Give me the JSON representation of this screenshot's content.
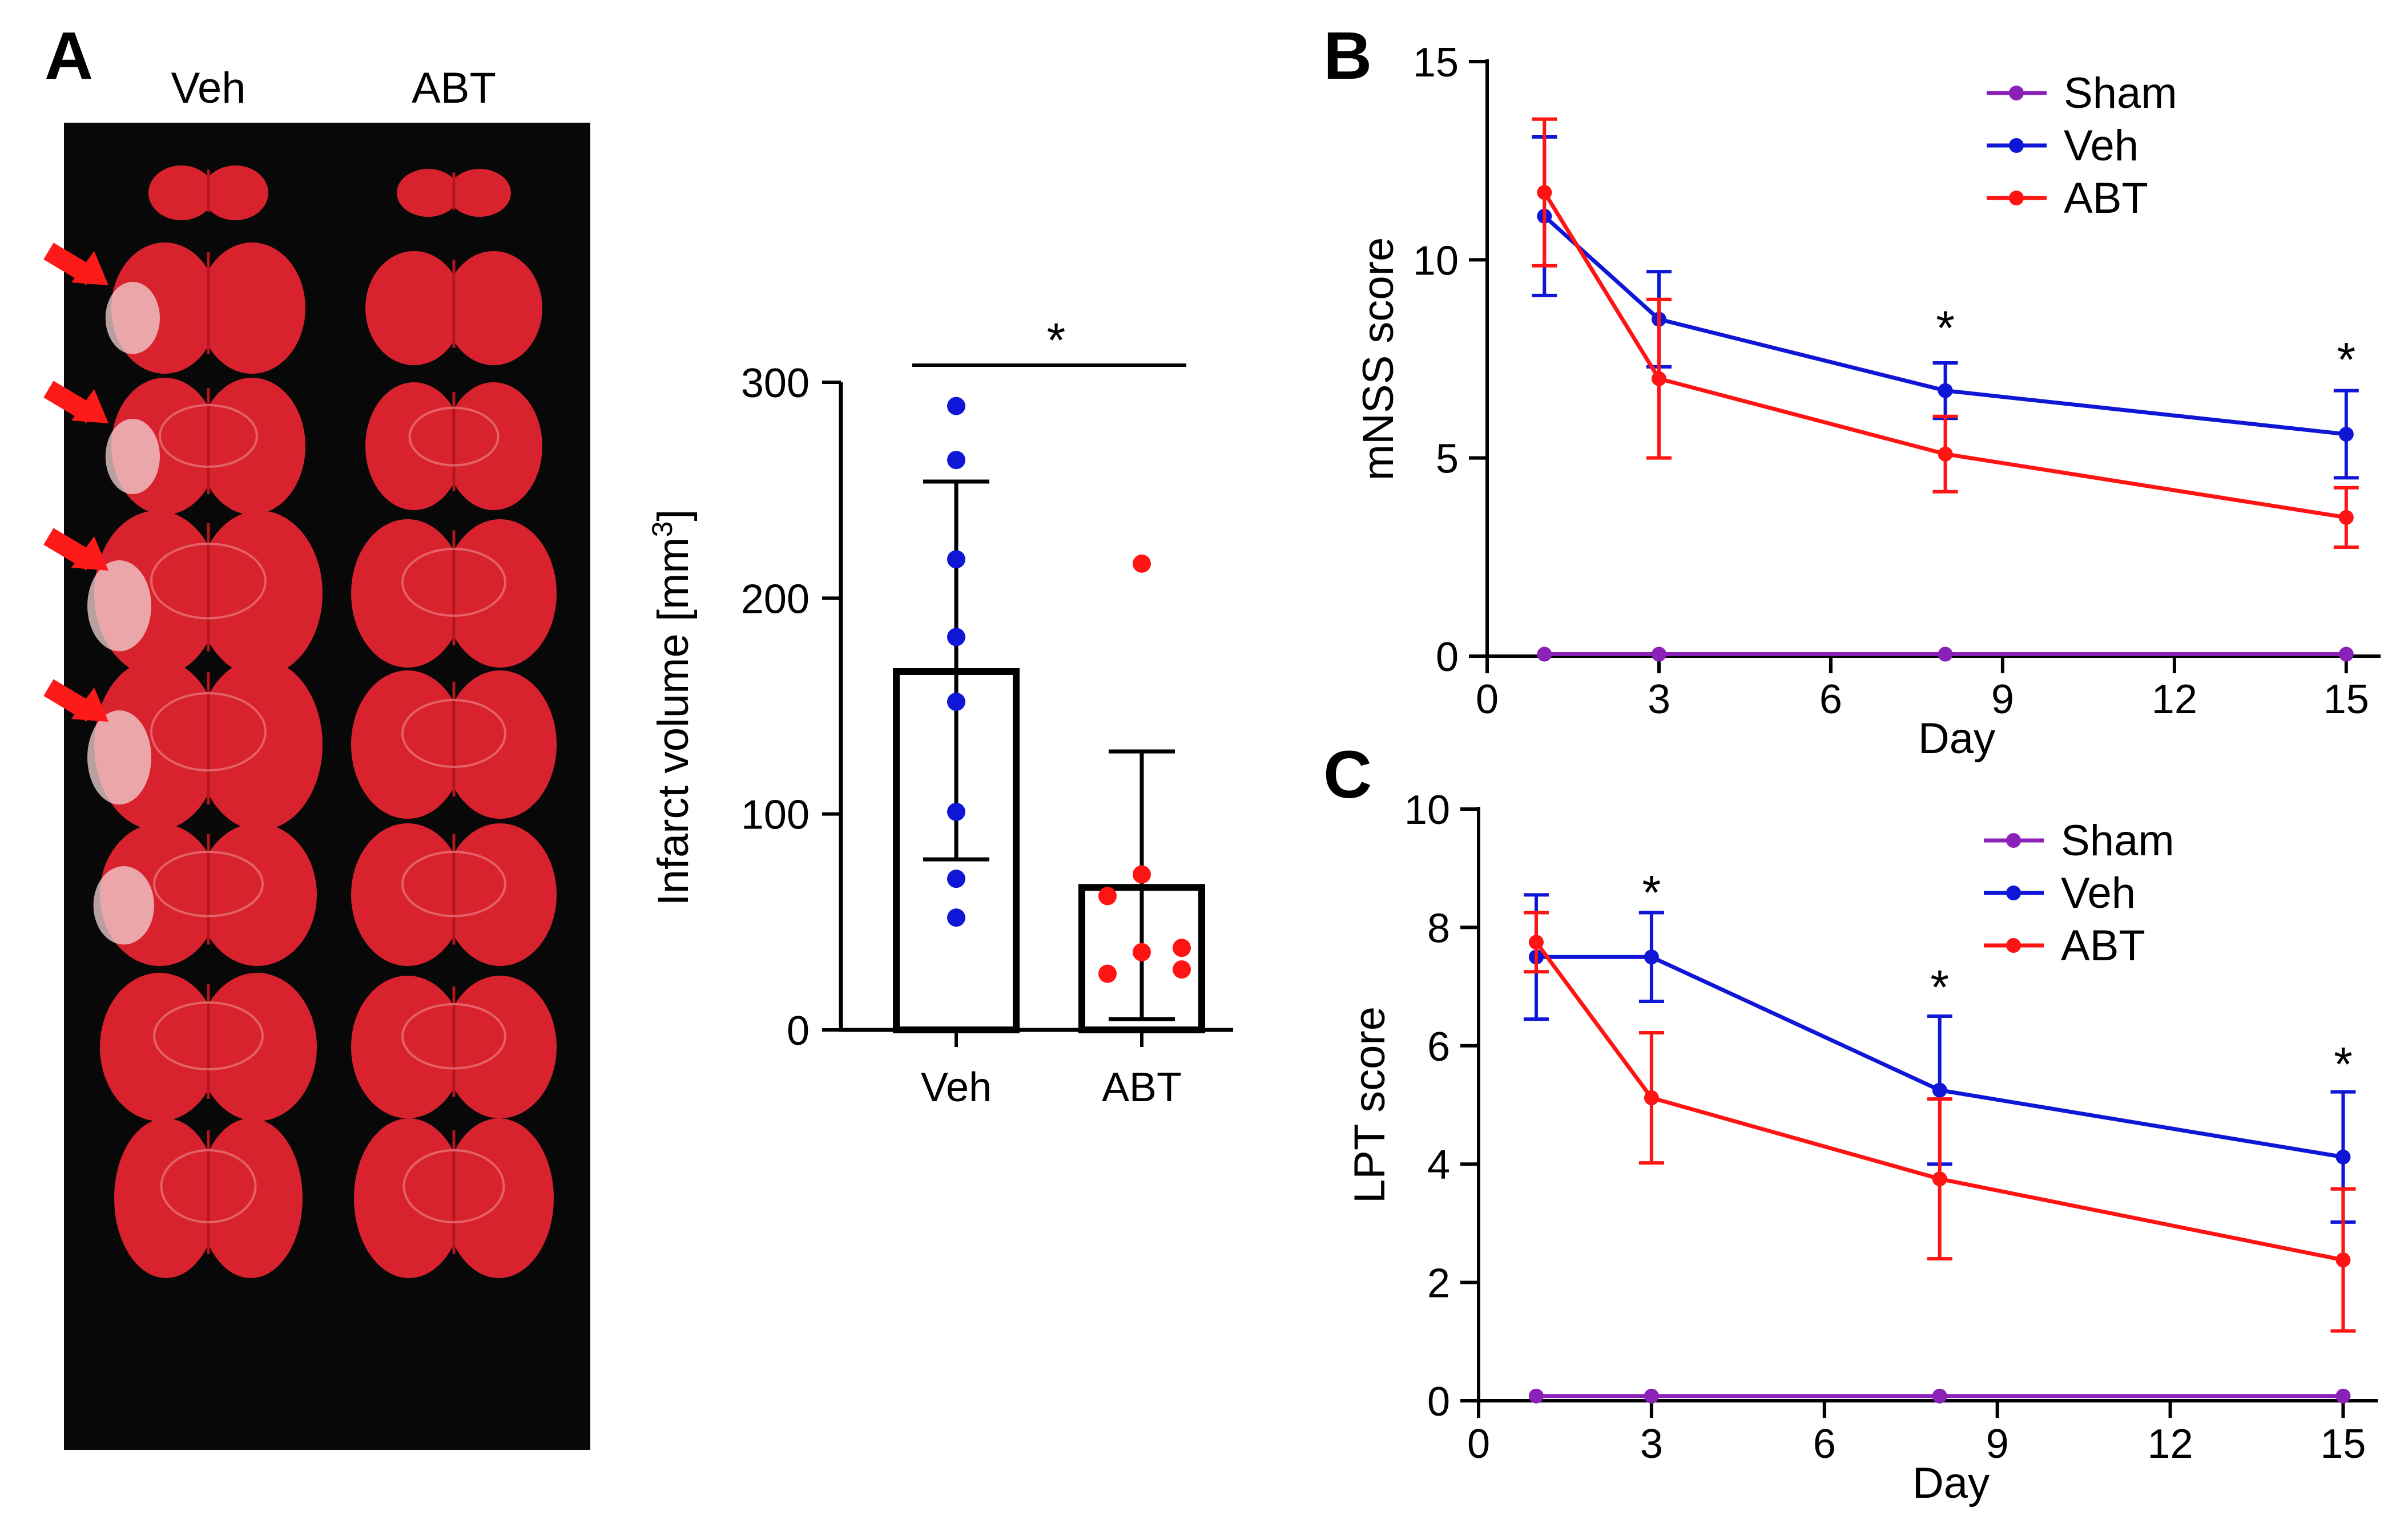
{
  "panel_labels": {
    "a": "A",
    "b": "B",
    "c": "C"
  },
  "photo": {
    "col_headers": [
      "Veh",
      "ABT"
    ],
    "sections": 8,
    "arrow_rows": [
      1,
      2,
      3,
      4
    ],
    "colors": {
      "tissue": "#d8232f",
      "tissue_dark": "#b4161f",
      "background": "#080808",
      "arrow": "#ff1a1a",
      "infarct": "#f2d3d3"
    }
  },
  "colors": {
    "sham": "#8a22b8",
    "veh": "#0f16d6",
    "abt": "#ff1414"
  },
  "chart_data": [
    {
      "id": "infarct",
      "type": "bar",
      "categories": [
        "Veh",
        "ABT"
      ],
      "values": [
        166,
        66
      ],
      "errors": [
        [
          79,
          254
        ],
        [
          5,
          129
        ]
      ],
      "points": [
        [
          289,
          264,
          218,
          182,
          152,
          101,
          70,
          52
        ],
        [
          216,
          72,
          62,
          38,
          36,
          28,
          26
        ]
      ],
      "point_colors": [
        "#0f16d6",
        "#ff1414"
      ],
      "ylabel": "Infarct volume [mm",
      "ylabel_sup": "3",
      "ylabel_end": "]",
      "yticks": [
        0,
        100,
        200,
        300
      ],
      "ylim": [
        0,
        300
      ],
      "significance": "*"
    },
    {
      "id": "mnss",
      "type": "line",
      "xlabel": "Day",
      "ylabel": "mNSS  score",
      "xticks": [
        0,
        3,
        6,
        9,
        12,
        15
      ],
      "yticks": [
        0,
        5,
        10,
        15
      ],
      "xlim": [
        0,
        15.6
      ],
      "ylim": [
        0,
        15
      ],
      "legend": "top-right",
      "series": [
        {
          "name": "Sham",
          "color": "#8a22b8",
          "x": [
            1,
            3,
            8,
            15
          ],
          "y": [
            0.05,
            0.05,
            0.05,
            0.05
          ],
          "err": [
            0,
            0,
            0,
            0
          ]
        },
        {
          "name": "Veh",
          "color": "#0f16d6",
          "x": [
            1,
            3,
            8,
            15
          ],
          "y": [
            11.1,
            8.5,
            6.7,
            5.6
          ],
          "err": [
            2.0,
            1.2,
            0.7,
            1.1
          ]
        },
        {
          "name": "ABT",
          "color": "#ff1414",
          "x": [
            1,
            3,
            8,
            15
          ],
          "y": [
            11.7,
            7.0,
            5.1,
            3.5
          ],
          "err": [
            1.85,
            2.0,
            0.95,
            0.75
          ]
        }
      ],
      "annotations": [
        {
          "x": 8,
          "y": 8.3,
          "text": "*"
        },
        {
          "x": 15,
          "y": 7.5,
          "text": "*"
        }
      ]
    },
    {
      "id": "lpt",
      "type": "line",
      "xlabel": "Day",
      "ylabel": "LPT score",
      "xticks": [
        0,
        3,
        6,
        9,
        12,
        15
      ],
      "yticks": [
        0,
        2,
        4,
        6,
        8,
        10
      ],
      "xlim": [
        0,
        15.6
      ],
      "ylim": [
        0,
        10
      ],
      "legend": "top-right",
      "series": [
        {
          "name": "Sham",
          "color": "#8a22b8",
          "x": [
            1,
            3,
            8,
            15
          ],
          "y": [
            0.08,
            0.08,
            0.08,
            0.08
          ],
          "err": [
            0,
            0,
            0,
            0
          ]
        },
        {
          "name": "Veh",
          "color": "#0f16d6",
          "x": [
            1,
            3,
            8,
            15
          ],
          "y": [
            7.5,
            7.5,
            5.25,
            4.12
          ],
          "err": [
            1.05,
            0.75,
            1.25,
            1.1
          ]
        },
        {
          "name": "ABT",
          "color": "#ff1414",
          "x": [
            1,
            3,
            8,
            15
          ],
          "y": [
            7.75,
            5.12,
            3.75,
            2.38
          ],
          "err": [
            0.5,
            1.1,
            1.35,
            1.2
          ]
        }
      ],
      "annotations": [
        {
          "x": 3,
          "y": 8.6,
          "text": "*"
        },
        {
          "x": 8,
          "y": 7.0,
          "text": "*"
        },
        {
          "x": 15,
          "y": 5.7,
          "text": "*"
        }
      ]
    }
  ]
}
